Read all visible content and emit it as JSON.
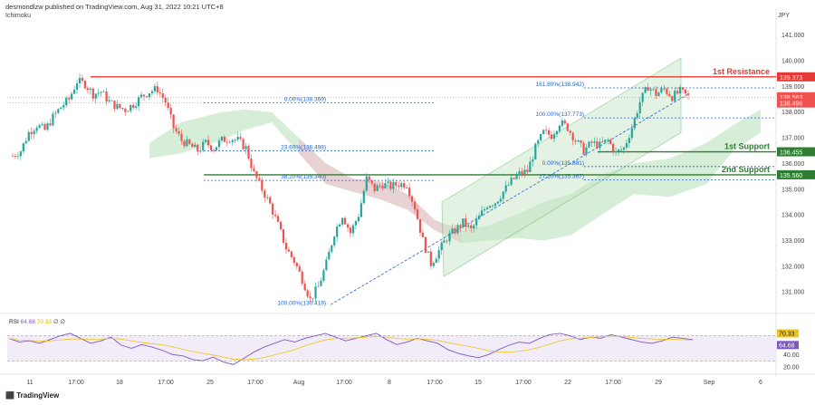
{
  "header": {
    "publisher": "desmondlzw published on TradingView.com, Aug 31, 2022 10:21 UTC+8",
    "indicator": "Ichimoku",
    "currency": "JPY",
    "footer": "TradingView"
  },
  "colors": {
    "up": "#26a69a",
    "down": "#ef5350",
    "resistance": "#e53935",
    "support": "#2e7d32",
    "fib": "#1e63d6",
    "channel_fill": "#c8e6c9",
    "cloud_green": "#a5d6a7",
    "cloud_red": "#f8bbd0",
    "rsi": "#7e57c2",
    "rsi_ma": "#f0c419"
  },
  "chart_data": {
    "type": "candlestick",
    "title": "",
    "ylim": [
      130.3,
      141.8
    ],
    "y_ticks": [
      141.0,
      140.0,
      139.0,
      138.0,
      137.0,
      136.0,
      135.0,
      134.0,
      133.0,
      132.0,
      131.0
    ],
    "x_tick_labels": [
      "11",
      "17:00",
      "18",
      "17:00",
      "25",
      "17:00",
      "Aug",
      "17:00",
      "8",
      "17:00",
      "15",
      "17:00",
      "22",
      "17:00",
      "29",
      "Sep",
      "6"
    ],
    "price_path": [
      136.3,
      136.5,
      137.2,
      137.5,
      137.3,
      137.8,
      138.2,
      138.5,
      139.2,
      139.1,
      138.7,
      138.8,
      138.4,
      138.2,
      138.1,
      138.3,
      138.6,
      138.8,
      138.9,
      138.4,
      137.4,
      136.9,
      136.7,
      136.5,
      136.8,
      136.6,
      136.9,
      137.0,
      136.9,
      136.6,
      135.6,
      135.0,
      134.4,
      133.6,
      132.7,
      132.2,
      131.5,
      130.7,
      131.2,
      132.1,
      133.3,
      134.0,
      133.3,
      134.0,
      135.4,
      135.0,
      135.2,
      135.1,
      135.2,
      135.2,
      134.3,
      133.0,
      132.1,
      132.6,
      133.1,
      133.4,
      133.7,
      133.4,
      133.9,
      134.4,
      134.5,
      134.9,
      135.3,
      135.6,
      135.7,
      136.6,
      137.2,
      137.1,
      137.6,
      137.4,
      136.9,
      136.5,
      136.8,
      136.7,
      136.9,
      136.4,
      136.6,
      137.4,
      138.4,
      139.0,
      138.7,
      138.9,
      138.6,
      138.8,
      138.6
    ],
    "last_close": 138.563,
    "levels": [
      {
        "label": "1st Resistance",
        "value": 139.373,
        "tag": "139.373",
        "kind": "resistance"
      },
      {
        "label": "1st Support",
        "value": 136.455,
        "tag": "136.455",
        "kind": "support"
      },
      {
        "label": "2nd Support",
        "value": 135.56,
        "tag": "135.560",
        "kind": "support"
      }
    ],
    "price_tags": [
      {
        "value": 138.563,
        "tag": "138.563"
      },
      {
        "value": 138.496,
        "tag": "138.496"
      }
    ],
    "fib_left": [
      {
        "label": "0.00%(138.369)",
        "value": 138.369
      },
      {
        "label": "23.60%(136.498)",
        "value": 136.498
      },
      {
        "label": "38.20%(135.340)",
        "value": 135.34
      },
      {
        "label": "100.00%(130.419)",
        "value": 130.419
      }
    ],
    "fib_right": [
      {
        "label": "161.80%(138.942)",
        "value": 138.942
      },
      {
        "label": "100.00%(137.773)",
        "value": 137.773
      },
      {
        "label": "0.00%(135.881)",
        "value": 135.881
      },
      {
        "label": "27.20%(135.367)",
        "value": 135.367
      }
    ],
    "rsi": {
      "label": "RSI",
      "value": 64.68,
      "ma_value": 70.33,
      "value_tag": "64.68",
      "ma_tag": "70.33",
      "ticks": [
        40.0,
        20.0
      ],
      "tick_labels": [
        "40.00",
        "20.00"
      ],
      "bands": [
        70,
        30
      ],
      "ylim": [
        10,
        100
      ],
      "flags": "∅ ∅",
      "values": [
        66,
        60,
        62,
        58,
        64,
        70,
        74,
        66,
        58,
        62,
        68,
        55,
        50,
        56,
        52,
        47,
        40,
        38,
        32,
        30,
        36,
        28,
        24,
        34,
        44,
        52,
        58,
        64,
        60,
        66,
        70,
        74,
        68,
        62,
        66,
        70,
        74,
        64,
        56,
        60,
        66,
        62,
        58,
        48,
        42,
        38,
        35,
        40,
        48,
        55,
        60,
        58,
        66,
        72,
        74,
        70,
        64,
        68,
        66,
        72,
        68,
        64,
        60,
        58,
        62,
        68,
        66,
        64
      ]
    }
  }
}
